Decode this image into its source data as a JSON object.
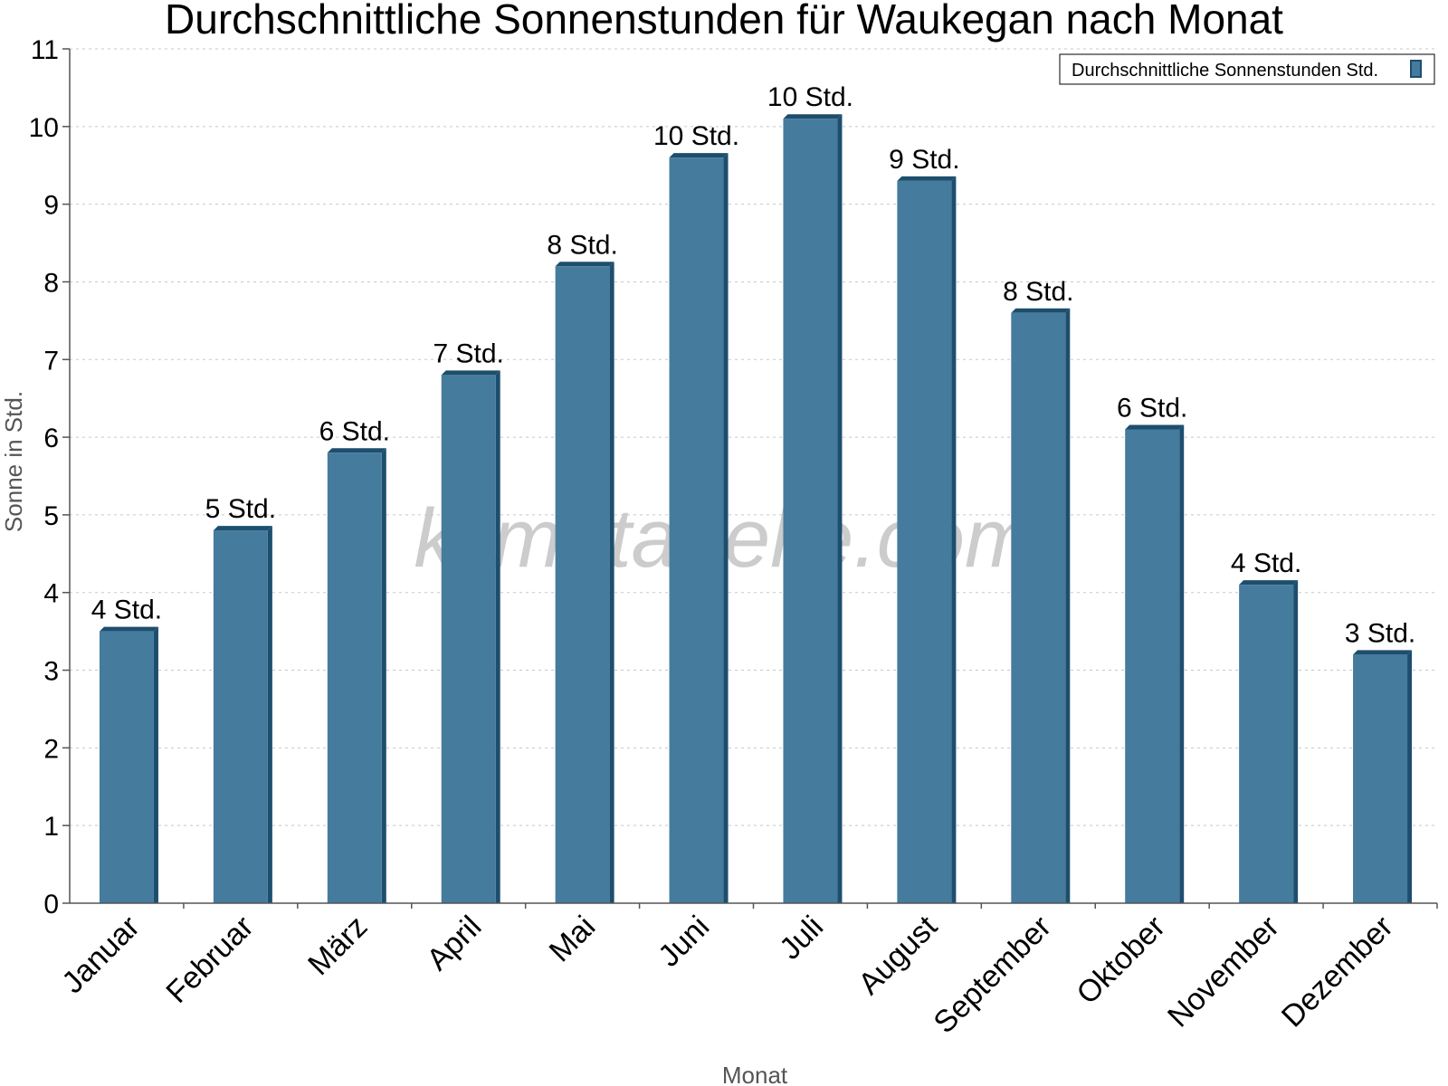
{
  "chart_data": {
    "type": "bar",
    "title": "Durchschnittliche Sonnenstunden für Waukegan nach Monat",
    "xlabel": "Monat",
    "ylabel": "Sonne in Std.",
    "ylim": [
      0,
      11
    ],
    "yticks": [
      0,
      1,
      2,
      3,
      4,
      5,
      6,
      7,
      8,
      9,
      10,
      11
    ],
    "grid": true,
    "legend_position": "top-right",
    "categories": [
      "Januar",
      "Februar",
      "März",
      "April",
      "Mai",
      "Juni",
      "Juli",
      "August",
      "September",
      "Oktober",
      "November",
      "Dezember"
    ],
    "series": [
      {
        "name": "Durchschnittliche Sonnenstunden Std.",
        "color": "#457b9d",
        "edge_color": "#1d4e6e",
        "values": [
          3.5,
          4.8,
          5.8,
          6.8,
          8.2,
          9.6,
          10.1,
          9.3,
          7.6,
          6.1,
          4.1,
          3.2
        ],
        "data_labels": [
          "4 Std.",
          "5 Std.",
          "6 Std.",
          "7 Std.",
          "8 Std.",
          "10 Std.",
          "10 Std.",
          "9 Std.",
          "8 Std.",
          "6 Std.",
          "4 Std.",
          "3 Std."
        ]
      }
    ]
  },
  "watermark": "klimatabelle.com"
}
